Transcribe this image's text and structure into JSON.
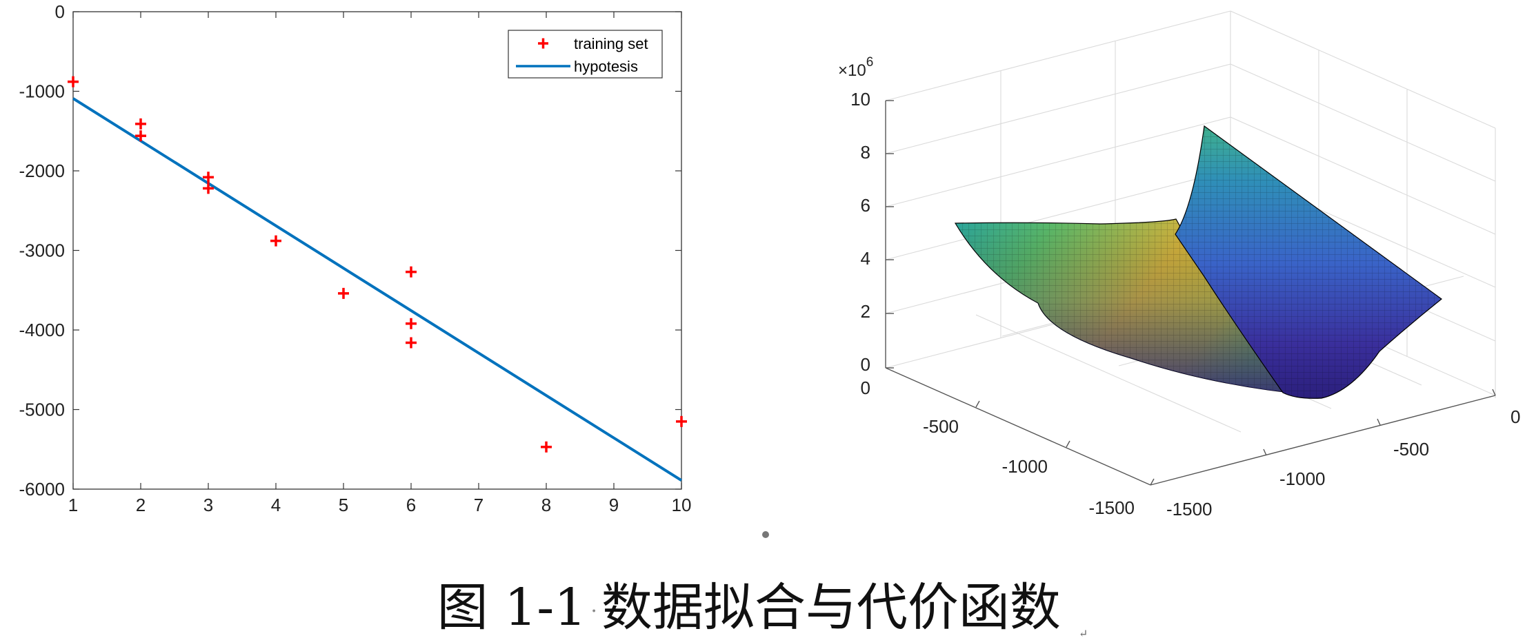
{
  "chart_data": [
    {
      "type": "scatter",
      "xlim": [
        1,
        10
      ],
      "ylim": [
        -6000,
        0
      ],
      "x_ticks": [
        "1",
        "2",
        "3",
        "4",
        "5",
        "6",
        "7",
        "8",
        "9",
        "10"
      ],
      "y_ticks": [
        "0",
        "-1000",
        "-2000",
        "-3000",
        "-4000",
        "-5000",
        "-6000"
      ],
      "legend_position": "top-right",
      "grid": false,
      "series": [
        {
          "name": "training set",
          "marker": "plus",
          "color": "#ff0000",
          "x": [
            1,
            2,
            2,
            3,
            3,
            4,
            5,
            6,
            6,
            6,
            8,
            10
          ],
          "y": [
            -880,
            -1410,
            -1560,
            -2080,
            -2220,
            -2880,
            -3540,
            -3270,
            -3920,
            -4160,
            -5470,
            -5150
          ]
        },
        {
          "name": "hypotesis",
          "marker": "line",
          "color": "#0072bd",
          "x": [
            1,
            10
          ],
          "y": [
            -1090,
            -5890
          ]
        }
      ]
    },
    {
      "type": "surface",
      "x_ticks": [
        "0",
        "-500",
        "-1000",
        "-1500"
      ],
      "y_ticks": [
        "0",
        "-500",
        "-1000",
        "-1500"
      ],
      "z_ticks": [
        "0",
        "2",
        "4",
        "6",
        "8",
        "10"
      ],
      "z_multiplier": "×10",
      "z_multiplier_exp": "6",
      "zlim": [
        0,
        10
      ],
      "grid": true,
      "colormap": "parula"
    }
  ],
  "caption": {
    "label": "图 1-1",
    "separator": "·",
    "title": "数据拟合与代价函数",
    "end_mark": "↵"
  }
}
